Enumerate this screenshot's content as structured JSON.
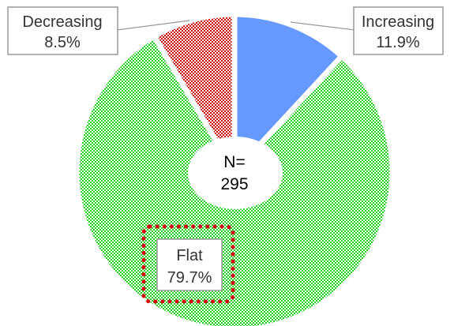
{
  "chart_data": {
    "type": "pie",
    "style": "doughnut",
    "center_label": [
      "N=",
      "295"
    ],
    "slices": [
      {
        "label": "Increasing",
        "value": 11.9,
        "value_label": "11.9%",
        "color": "#6699ff",
        "pattern": "solid"
      },
      {
        "label": "Flat",
        "value": 79.7,
        "value_label": "79.7%",
        "color": "#22cc22",
        "pattern": "checker",
        "highlighted": true,
        "highlight_color": "#dd0000"
      },
      {
        "label": "Decreasing",
        "value": 8.5,
        "value_label": "8.5%",
        "color": "#cc0000",
        "pattern": "checker"
      }
    ]
  }
}
